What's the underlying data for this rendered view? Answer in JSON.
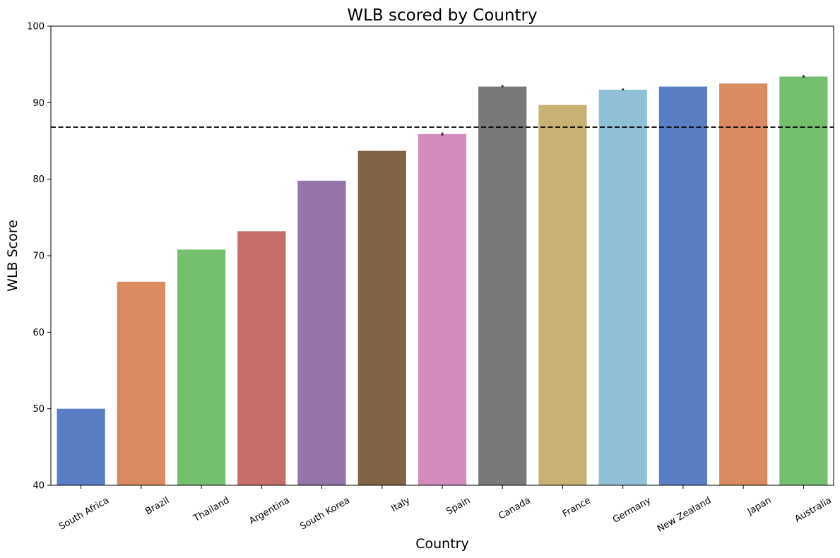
{
  "chart_data": {
    "type": "bar",
    "title": "WLB scored by Country",
    "xlabel": "Country",
    "ylabel": "WLB Score",
    "ylim": [
      40,
      100
    ],
    "yticks": [
      40,
      50,
      60,
      70,
      80,
      90,
      100
    ],
    "categories": [
      "South Africa",
      "Brazil",
      "Thailand",
      "Argentina",
      "South Korea",
      "Italy",
      "Spain",
      "Canada",
      "France",
      "Germany",
      "New Zealand",
      "Japan",
      "Australia"
    ],
    "values": [
      50.0,
      66.6,
      70.8,
      73.2,
      79.8,
      83.7,
      85.9,
      92.1,
      89.7,
      91.7,
      92.1,
      92.5,
      93.4
    ],
    "error_bars": [
      {
        "category": "Spain",
        "low": 85.7,
        "high": 86.1
      },
      {
        "category": "Canada",
        "low": 92.0,
        "high": 92.3
      },
      {
        "category": "Germany",
        "low": 91.6,
        "high": 91.85
      },
      {
        "category": "Australia",
        "low": 93.25,
        "high": 93.6
      }
    ],
    "reference_line": {
      "value": 86.8,
      "style": "dashed",
      "color": "#000000"
    },
    "colors": [
      "#5a7ec4",
      "#da8a5f",
      "#74bf6d",
      "#c66d6b",
      "#9474ab",
      "#826245",
      "#d38abd",
      "#797979",
      "#c7b274",
      "#8fc0d7",
      "#5a7ec4",
      "#da8a5f",
      "#74bf6d"
    ],
    "grid": false,
    "legend": "none"
  }
}
